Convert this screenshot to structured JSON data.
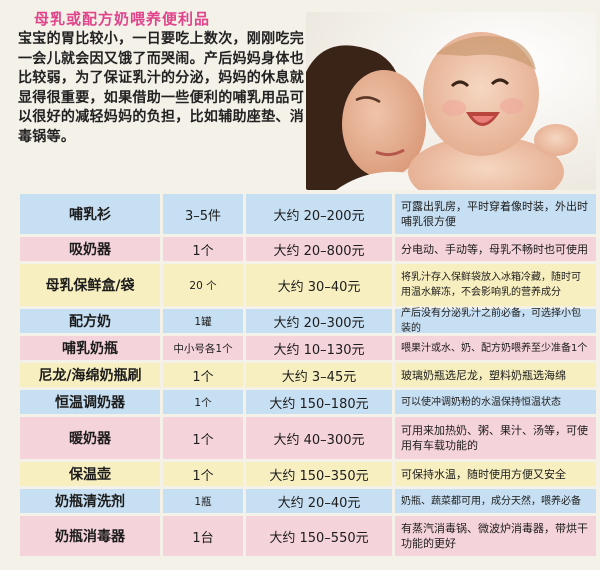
{
  "header": {
    "title": "母乳或配方奶喂养便利品",
    "intro": "宝宝的胃比较小，一日要吃上数次，刚刚吃完一会儿就会因又饿了而哭闹。产后妈妈身体也比较弱，为了保证乳汁的分泌，妈妈的休息就显得很重要，如果借助一些便利的哺乳用品可以很好的减轻妈妈的负担，比如辅助座垫、消毒锅等。"
  },
  "colors": {
    "title": "#e0458c",
    "row_blue": "#c7dff2",
    "row_pink": "#f5d3da",
    "row_yellow": "#f7efbf"
  },
  "table": {
    "rows": [
      {
        "item": "哺乳衫",
        "qty": "3–5件",
        "price": "大约 20–200元",
        "note": "可露出乳房，平时穿着像时装，外出时哺乳很方便",
        "color": "blue"
      },
      {
        "item": "吸奶器",
        "qty": "1个",
        "price": "大约 20–800元",
        "note": "分电动、手动等，母乳不畅时也可使用",
        "color": "pink"
      },
      {
        "item": "母乳保鲜盒/袋",
        "qty": "20 个",
        "price": "大约 30–40元",
        "note": "将乳汁存入保鲜袋放入冰箱冷藏，随时可用温水解冻，不会影响乳的营养成分",
        "color": "yellow"
      },
      {
        "item": "配方奶",
        "qty": "1罐",
        "price": "大约 20–300元",
        "note": "产后没有分泌乳汁之前必备，可选择小包装的",
        "color": "blue"
      },
      {
        "item": "哺乳奶瓶",
        "qty": "中小号各1个",
        "price": "大约 10–130元",
        "note": "喂果汁或水、奶、配方奶喂养至少准备1个",
        "color": "pink"
      },
      {
        "item": "尼龙/海绵奶瓶刷",
        "qty": "1个",
        "price": "大约 3–45元",
        "note": "玻璃奶瓶选尼龙，塑料奶瓶选海绵",
        "color": "yellow"
      },
      {
        "item": "恒温调奶器",
        "qty": "1个",
        "price": "大约 150–180元",
        "note": "可以使冲调奶粉的水温保持恒温状态",
        "color": "blue"
      },
      {
        "item": "暖奶器",
        "qty": "1个",
        "price": "大约 40–300元",
        "note": "可用来加热奶、粥、果汁、汤等，可使用有车载功能的",
        "color": "pink"
      },
      {
        "item": "保温壶",
        "qty": "1个",
        "price": "大约 150–350元",
        "note": "可保持水温，随时使用方便又安全",
        "color": "yellow"
      },
      {
        "item": "奶瓶清洗剂",
        "qty": "1瓶",
        "price": "大约 20–40元",
        "note": "奶瓶、蔬菜都可用，成分天然，喂养必备",
        "color": "blue"
      },
      {
        "item": "奶瓶消毒器",
        "qty": "1台",
        "price": "大约 150–550元",
        "note": "有蒸汽消毒锅、微波炉消毒器，带烘干功能的更好",
        "color": "pink"
      }
    ]
  }
}
